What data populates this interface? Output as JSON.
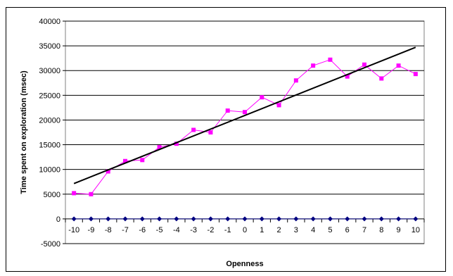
{
  "chart_data": {
    "type": "line",
    "title": "",
    "xlabel": "Openness",
    "ylabel": "Time spent on exploration (msec)",
    "x": [
      -10,
      -9,
      -8,
      -7,
      -6,
      -5,
      -4,
      -3,
      -2,
      -1,
      0,
      1,
      2,
      3,
      4,
      5,
      6,
      7,
      8,
      9,
      10
    ],
    "x_tick_labels": [
      "-10",
      "-9",
      "-8",
      "-7",
      "-6",
      "-5",
      "-4",
      "-3",
      "-2",
      "-1",
      "0",
      "1",
      "2",
      "3",
      "4",
      "5",
      "6",
      "7",
      "8",
      "9",
      "10"
    ],
    "y_tick_labels": [
      "40000",
      "35000",
      "30000",
      "25000",
      "20000",
      "15000",
      "10000",
      "5000",
      "0",
      "-5000"
    ],
    "y_ticks": [
      40000,
      35000,
      30000,
      25000,
      20000,
      15000,
      10000,
      5000,
      0,
      -5000
    ],
    "ylim": [
      -5000,
      40000
    ],
    "grid": "horizontal",
    "legend": "none",
    "series": [
      {
        "values": [
          5200,
          5000,
          9600,
          11700,
          11900,
          14500,
          15200,
          18000,
          17500,
          21900,
          21600,
          24600,
          23000,
          28000,
          31000,
          32200,
          28800,
          31200,
          28400,
          31000,
          29300
        ],
        "color": "#ff00ff",
        "marker": "square"
      },
      {
        "values": [
          0,
          0,
          0,
          0,
          0,
          0,
          0,
          0,
          0,
          0,
          0,
          0,
          0,
          0,
          0,
          0,
          0,
          0,
          0,
          0,
          0
        ],
        "color": "#000080",
        "marker": "diamond"
      }
    ],
    "trendline": {
      "x": [
        -10,
        10
      ],
      "values": [
        7150,
        34700
      ],
      "color": "#000000"
    }
  }
}
